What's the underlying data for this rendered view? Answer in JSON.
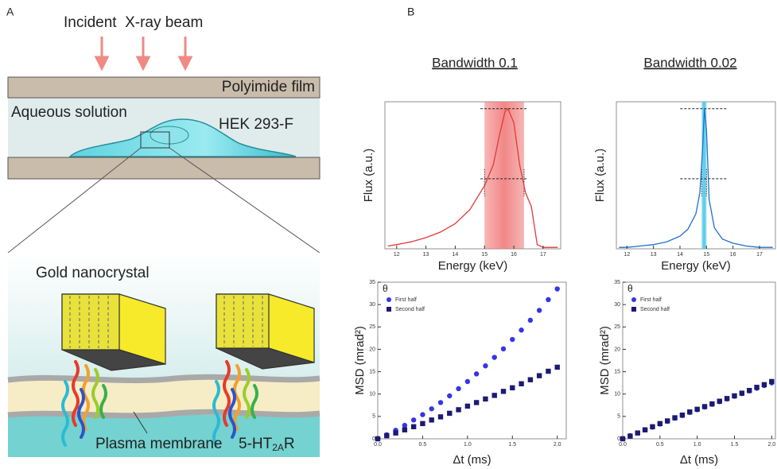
{
  "panel_a": {
    "label": "A",
    "beam_label": "Incident  X-ray beam",
    "film_label": "Polyimide film",
    "solution_label": "Aqueous solution",
    "cell_label": "HEK 293-F",
    "crystal_label": "Gold nanocrystal",
    "membrane_label": "Plasma membrane",
    "receptor_label": {
      "main": "5-HT",
      "sub": "2A",
      "end": "R"
    }
  },
  "panel_b": {
    "label": "B",
    "column_titles": [
      "Bandwidth 0.1",
      "Bandwidth 0.02"
    ]
  },
  "chart_data": [
    {
      "type": "line",
      "x_label": "Energy (keV)",
      "y_label": "Flux (a.u.)",
      "color": "#e23a36",
      "band_color": "#f07a7a",
      "band": [
        15.0,
        16.35
      ],
      "hlines": [
        1.0,
        0.5
      ],
      "x": [
        11.7,
        12,
        12.5,
        13,
        13.5,
        14,
        14.5,
        15,
        15.3,
        15.5,
        15.7,
        15.8,
        16,
        16.2,
        16.4,
        16.6,
        16.8,
        17,
        17.5
      ],
      "values": [
        0.02,
        0.03,
        0.05,
        0.08,
        0.12,
        0.18,
        0.28,
        0.45,
        0.6,
        0.8,
        0.98,
        1.0,
        0.9,
        0.6,
        0.4,
        0.3,
        0.03,
        0.01,
        0.01
      ],
      "xlim": [
        11.6,
        17.6
      ],
      "ylim": [
        0,
        1.05
      ],
      "xticks": [
        12,
        13,
        14,
        15,
        16,
        17
      ]
    },
    {
      "type": "line",
      "x_label": "Energy (keV)",
      "y_label": "Flux (a.u.)",
      "color": "#1f6fd0",
      "band_color": "#3cc6e6",
      "band": [
        14.82,
        15.0
      ],
      "hlines": [
        1.0,
        0.5
      ],
      "x": [
        11.7,
        12,
        12.5,
        13,
        13.5,
        14,
        14.3,
        14.6,
        14.75,
        14.85,
        14.92,
        15.0,
        15.1,
        15.3,
        15.6,
        16,
        16.5,
        17,
        17.5
      ],
      "values": [
        0.01,
        0.01,
        0.02,
        0.03,
        0.05,
        0.09,
        0.14,
        0.25,
        0.4,
        0.7,
        1.0,
        0.85,
        0.35,
        0.15,
        0.07,
        0.04,
        0.02,
        0.01,
        0.01
      ],
      "xlim": [
        11.6,
        17.6
      ],
      "ylim": [
        0,
        1.05
      ],
      "xticks": [
        12,
        13,
        14,
        15,
        16,
        17
      ]
    },
    {
      "type": "scatter",
      "x_label": "Δt (ms)",
      "y_label": "MSD (mrad²)",
      "annotation": "θ",
      "x": [
        0,
        0.1,
        0.2,
        0.3,
        0.4,
        0.5,
        0.6,
        0.7,
        0.8,
        0.9,
        1.0,
        1.1,
        1.2,
        1.3,
        1.4,
        1.5,
        1.6,
        1.7,
        1.8,
        1.9,
        2.0
      ],
      "series": [
        {
          "name": "First half",
          "color": "#3535e6",
          "marker": "circle",
          "values": [
            0,
            0.9,
            1.9,
            3.0,
            4.2,
            5.4,
            6.7,
            8.1,
            9.6,
            11.2,
            12.8,
            14.5,
            16.3,
            18.2,
            20.1,
            22.2,
            24.3,
            26.5,
            28.7,
            31.1,
            33.5
          ]
        },
        {
          "name": "Second half",
          "color": "#1b1b70",
          "marker": "square",
          "values": [
            0,
            0.7,
            1.3,
            2.0,
            2.7,
            3.4,
            4.2,
            4.9,
            5.7,
            6.5,
            7.3,
            8.1,
            8.9,
            9.7,
            10.6,
            11.4,
            12.3,
            13.2,
            14.1,
            15.1,
            16.0
          ]
        }
      ],
      "xlim": [
        0,
        2.1
      ],
      "ylim": [
        0,
        35
      ],
      "xticks": [
        {
          "value": 0,
          "label": "0.0"
        },
        0.5,
        {
          "value": 1,
          "label": "1.0"
        },
        1.5,
        {
          "value": 2,
          "label": "2.0"
        }
      ],
      "yticks": [
        0,
        5,
        10,
        15,
        20,
        25,
        30,
        35
      ]
    },
    {
      "type": "scatter",
      "x_label": "Δt (ms)",
      "y_label": "MSD (mrad²)",
      "annotation": "θ",
      "x": [
        0,
        0.1,
        0.2,
        0.3,
        0.4,
        0.5,
        0.6,
        0.7,
        0.8,
        0.9,
        1.0,
        1.1,
        1.2,
        1.3,
        1.4,
        1.5,
        1.6,
        1.7,
        1.8,
        1.9,
        2.0
      ],
      "series": [
        {
          "name": "First half",
          "color": "#3535e6",
          "marker": "circle",
          "values": [
            0,
            0.7,
            1.3,
            2.0,
            2.6,
            3.3,
            3.9,
            4.6,
            5.2,
            5.9,
            6.5,
            7.1,
            7.7,
            8.3,
            8.9,
            9.5,
            10.1,
            10.7,
            11.3,
            11.9,
            12.5
          ]
        },
        {
          "name": "Second half",
          "color": "#1b1b70",
          "marker": "square",
          "values": [
            0,
            0.6,
            1.3,
            2.0,
            2.7,
            3.4,
            4.0,
            4.7,
            5.3,
            6.0,
            6.6,
            7.2,
            7.8,
            8.4,
            9.0,
            9.6,
            10.2,
            10.8,
            11.5,
            12.1,
            12.8
          ]
        }
      ],
      "xlim": [
        0,
        2.05
      ],
      "ylim": [
        0,
        35
      ],
      "xticks": [
        {
          "value": 0,
          "label": "0.0"
        },
        0.5,
        {
          "value": 1,
          "label": "1.0"
        },
        1.5,
        {
          "value": 2,
          "label": "2.0"
        }
      ],
      "yticks": [
        0,
        5,
        10,
        15,
        20,
        25,
        30,
        35
      ]
    }
  ]
}
